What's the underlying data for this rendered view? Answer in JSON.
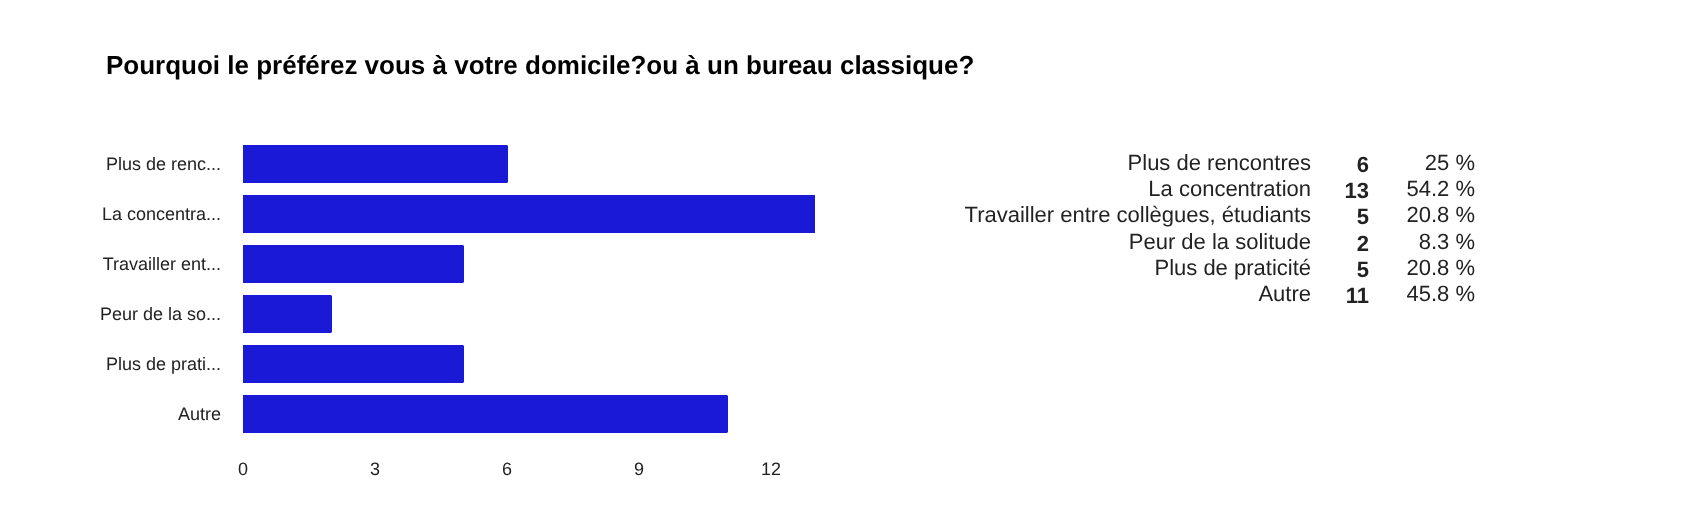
{
  "chart_data": {
    "type": "bar",
    "orientation": "horizontal",
    "title": "Pourquoi le préférez vous à votre domicile?ou à un bureau classique?",
    "categories": [
      "Plus de renc...",
      "La concentra...",
      "Travailler ent...",
      "Peur de la so...",
      "Plus de prati...",
      "Autre"
    ],
    "values": [
      6,
      13,
      5,
      2,
      5,
      11
    ],
    "color": "#1a1ad6",
    "xlim": [
      0,
      13
    ],
    "xticks": [
      0,
      3,
      6,
      9,
      12
    ],
    "grid": false,
    "annotations": [
      "Plus de rencontres",
      "La concentration",
      "Travailler entre collègues, étudiants",
      "Peur de la solitude",
      "Plus de praticité",
      "Autre",
      "6",
      "13",
      "5",
      "2",
      "5",
      "11",
      "25 %",
      "54.2 %",
      "20.8 %",
      "8.3 %",
      "20.8 %",
      "45.8 %"
    ]
  }
}
